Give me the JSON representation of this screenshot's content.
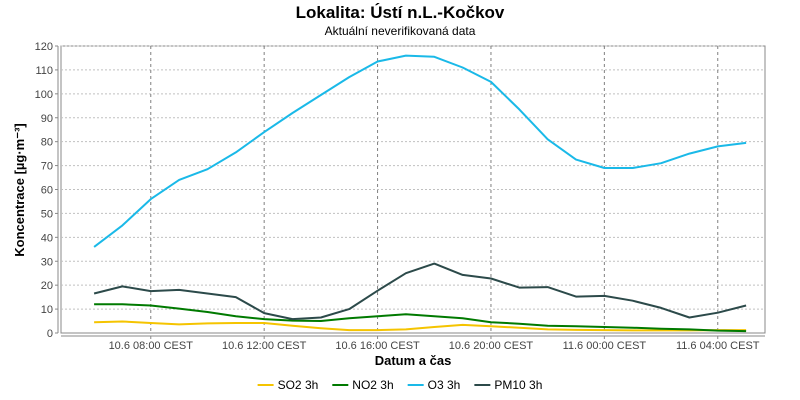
{
  "chart_data": {
    "type": "line",
    "title": "Lokalita: Ústí n.L.-Kočkov",
    "subtitle": "Aktuální neverifikovaná data",
    "xlabel": "Datum a čas",
    "ylabel": "Koncentrace [µg·m⁻³]",
    "ylim": [
      0,
      120
    ],
    "yticks": [
      0,
      10,
      20,
      30,
      40,
      50,
      60,
      70,
      80,
      90,
      100,
      110,
      120
    ],
    "xlim": [
      "10.6 04:50",
      "11.6 05:40"
    ],
    "xticks": [
      {
        "x": "10.6 08:00",
        "label": "10.6 08:00 CEST"
      },
      {
        "x": "10.6 12:00",
        "label": "10.6 12:00 CEST"
      },
      {
        "x": "10.6 16:00",
        "label": "10.6 16:00 CEST"
      },
      {
        "x": "10.6 20:00",
        "label": "10.6 20:00 CEST"
      },
      {
        "x": "11.6 00:00",
        "label": "11.6 00:00 CEST"
      },
      {
        "x": "11.6 04:00",
        "label": "11.6 04:00 CEST"
      }
    ],
    "grid": true,
    "legend": "bottom",
    "x": [
      "10.6 06:00",
      "10.6 07:00",
      "10.6 08:00",
      "10.6 09:00",
      "10.6 10:00",
      "10.6 11:00",
      "10.6 12:00",
      "10.6 13:00",
      "10.6 14:00",
      "10.6 15:00",
      "10.6 16:00",
      "10.6 17:00",
      "10.6 18:00",
      "10.6 19:00",
      "10.6 20:00",
      "10.6 21:00",
      "10.6 22:00",
      "10.6 23:00",
      "11.6 00:00",
      "11.6 01:00",
      "11.6 02:00",
      "11.6 03:00",
      "11.6 04:00",
      "11.6 05:00"
    ],
    "series": [
      {
        "name": "SO2 3h",
        "color": "#f5c400",
        "values": [
          4.5,
          4.8,
          4.2,
          3.6,
          4.0,
          4.2,
          4.2,
          3.0,
          2.0,
          1.2,
          1.2,
          1.5,
          2.5,
          3.4,
          2.8,
          2.2,
          1.5,
          1.3,
          1.2,
          1.1,
          1.1,
          1.1,
          1.2,
          1.2
        ]
      },
      {
        "name": "NO2 3h",
        "color": "#007a00",
        "values": [
          12.0,
          12.0,
          11.5,
          10.2,
          8.8,
          7.0,
          5.8,
          5.2,
          5.0,
          6.2,
          7.0,
          7.8,
          7.0,
          6.2,
          4.5,
          3.9,
          3.0,
          2.8,
          2.5,
          2.2,
          1.8,
          1.5,
          1.0,
          0.8
        ]
      },
      {
        "name": "O3 3h",
        "color": "#1ab9e8",
        "values": [
          36,
          45,
          56,
          64,
          68.5,
          75.5,
          84,
          92,
          99.5,
          107,
          113.5,
          116,
          115.5,
          111,
          105,
          93.5,
          81,
          72.5,
          69,
          69,
          71,
          75,
          78,
          79.5
        ]
      },
      {
        "name": "PM10 3h",
        "color": "#2c4a4a",
        "values": [
          16.5,
          19.5,
          17.5,
          18.0,
          16.5,
          15.0,
          8.3,
          5.8,
          6.5,
          10.0,
          17.7,
          25.0,
          29.0,
          24.3,
          22.8,
          19.0,
          19.2,
          15.2,
          15.5,
          13.5,
          10.5,
          6.5,
          8.5,
          11.5
        ]
      }
    ]
  }
}
